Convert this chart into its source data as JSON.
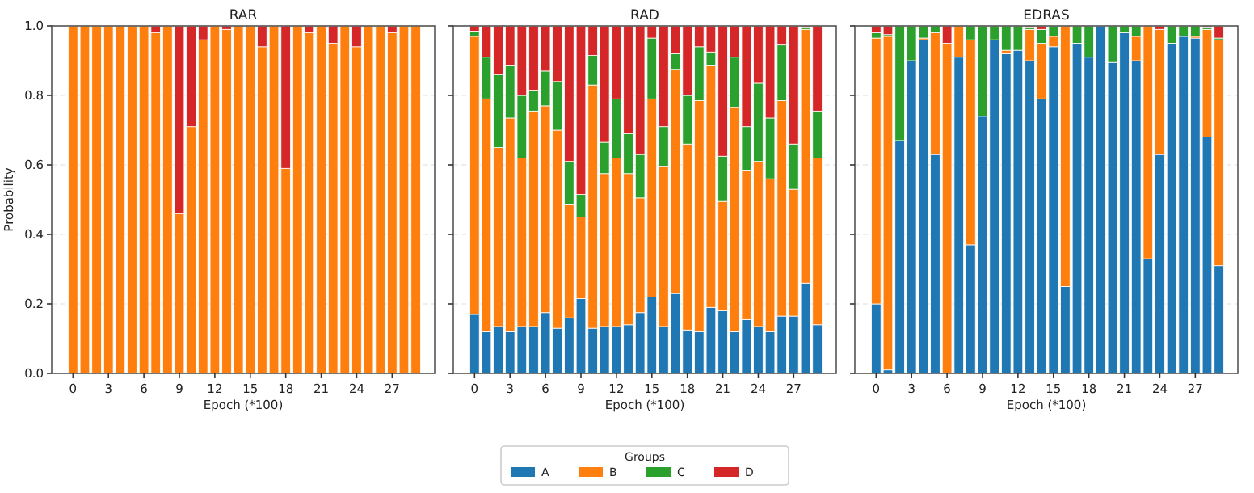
{
  "chart_data": [
    {
      "type": "bar",
      "stacked": true,
      "title": "RAR",
      "xlabel": "Epoch (*100)",
      "ylabel": "Probability",
      "x": [
        0,
        1,
        2,
        3,
        4,
        5,
        6,
        7,
        8,
        9,
        10,
        11,
        12,
        13,
        14,
        15,
        16,
        17,
        18,
        19,
        20,
        21,
        22,
        23,
        24,
        25,
        26,
        27,
        28,
        29
      ],
      "xlim": [
        -1.8,
        30.6
      ],
      "xticks": [
        0,
        3,
        6,
        9,
        12,
        15,
        18,
        21,
        24,
        27
      ],
      "ylim": [
        0,
        1
      ],
      "yticks": [
        {
          "value": 0,
          "label": "0.0"
        },
        0.2,
        0.4,
        0.6,
        0.8,
        {
          "value": 1,
          "label": "1.0"
        }
      ],
      "grid": "y",
      "series": [
        {
          "color": "#1f77b4",
          "values": [
            0,
            0,
            0,
            0,
            0,
            0,
            0,
            0,
            0,
            0,
            0,
            0,
            0,
            0,
            0,
            0,
            0,
            0,
            0,
            0,
            0,
            0,
            0,
            0,
            0,
            0,
            0,
            0,
            0,
            0
          ]
        },
        {
          "color": "#ff7f0e",
          "values": [
            1,
            1,
            1,
            1,
            1,
            1,
            1,
            0.98,
            1,
            0.46,
            0.71,
            0.96,
            1,
            0.99,
            1,
            1,
            0.94,
            1,
            0.59,
            1,
            0.98,
            1,
            0.95,
            1,
            0.94,
            1,
            1,
            0.98,
            1,
            1
          ]
        },
        {
          "color": "#2ca02c",
          "values": [
            0,
            0,
            0,
            0,
            0,
            0,
            0,
            0,
            0,
            0,
            0,
            0,
            0,
            0,
            0,
            0,
            0,
            0,
            0,
            0,
            0,
            0,
            0,
            0,
            0,
            0,
            0,
            0,
            0,
            0
          ]
        },
        {
          "color": "#d62728",
          "values": [
            0,
            0,
            0,
            0,
            0,
            0,
            0,
            0.02,
            0,
            0.54,
            0.29,
            0.04,
            0,
            0.01,
            0,
            0,
            0.06,
            0,
            0.41,
            0,
            0.02,
            0,
            0.05,
            0,
            0.06,
            0,
            0,
            0.02,
            0,
            0
          ]
        }
      ]
    },
    {
      "type": "bar",
      "stacked": true,
      "title": "RAD",
      "xlabel": "Epoch (*100)",
      "x": [
        0,
        1,
        2,
        3,
        4,
        5,
        6,
        7,
        8,
        9,
        10,
        11,
        12,
        13,
        14,
        15,
        16,
        17,
        18,
        19,
        20,
        21,
        22,
        23,
        24,
        25,
        26,
        27,
        28,
        29
      ],
      "xlim": [
        -1.8,
        30.6
      ],
      "xticks": [
        0,
        3,
        6,
        9,
        12,
        15,
        18,
        21,
        24,
        27
      ],
      "ylim": [
        0,
        1
      ],
      "yticks": [
        0,
        0.2,
        0.4,
        0.6,
        0.8,
        1
      ],
      "tick_labels": "x",
      "grid": "y",
      "legend": "bottom",
      "legend_title": "Groups",
      "series": [
        {
          "name": "A",
          "color": "#1f77b4",
          "values": [
            0.17,
            0.12,
            0.135,
            0.12,
            0.135,
            0.135,
            0.175,
            0.13,
            0.16,
            0.215,
            0.13,
            0.135,
            0.135,
            0.14,
            0.175,
            0.22,
            0.135,
            0.23,
            0.125,
            0.12,
            0.19,
            0.18,
            0.12,
            0.155,
            0.135,
            0.12,
            0.165,
            0.165,
            0.26,
            0.14
          ]
        },
        {
          "name": "B",
          "color": "#ff7f0e",
          "values": [
            0.8,
            0.67,
            0.515,
            0.615,
            0.485,
            0.62,
            0.595,
            0.57,
            0.325,
            0.235,
            0.7,
            0.44,
            0.485,
            0.435,
            0.33,
            0.57,
            0.46,
            0.645,
            0.535,
            0.665,
            0.695,
            0.315,
            0.645,
            0.43,
            0.475,
            0.44,
            0.62,
            0.365,
            0.73,
            0.48
          ]
        },
        {
          "name": "C",
          "color": "#2ca02c",
          "values": [
            0.015,
            0.12,
            0.21,
            0.15,
            0.18,
            0.06,
            0.1,
            0.14,
            0.125,
            0.065,
            0.085,
            0.09,
            0.17,
            0.115,
            0.125,
            0.175,
            0.115,
            0.045,
            0.14,
            0.155,
            0.04,
            0.13,
            0.145,
            0.125,
            0.225,
            0.175,
            0.16,
            0.13,
            0.005,
            0.135
          ]
        },
        {
          "name": "D",
          "color": "#d62728",
          "values": [
            0.015,
            0.09,
            0.14,
            0.115,
            0.2,
            0.185,
            0.13,
            0.16,
            0.39,
            0.485,
            0.085,
            0.335,
            0.21,
            0.31,
            0.37,
            0.035,
            0.29,
            0.08,
            0.2,
            0.06,
            0.075,
            0.375,
            0.09,
            0.29,
            0.165,
            0.265,
            0.055,
            0.34,
            0.005,
            0.245
          ]
        }
      ]
    },
    {
      "type": "bar",
      "stacked": true,
      "title": "EDRAS",
      "xlabel": "Epoch (*100)",
      "x": [
        0,
        1,
        2,
        3,
        4,
        5,
        6,
        7,
        8,
        9,
        10,
        11,
        12,
        13,
        14,
        15,
        16,
        17,
        18,
        19,
        20,
        21,
        22,
        23,
        24,
        25,
        26,
        27,
        28,
        29
      ],
      "xlim": [
        -1.8,
        30.6
      ],
      "xticks": [
        0,
        3,
        6,
        9,
        12,
        15,
        18,
        21,
        24,
        27
      ],
      "ylim": [
        0,
        1
      ],
      "yticks": [
        0,
        0.2,
        0.4,
        0.6,
        0.8,
        1
      ],
      "tick_labels": "x",
      "grid": "y",
      "series": [
        {
          "color": "#1f77b4",
          "values": [
            0.2,
            0.01,
            0.67,
            0.9,
            0.96,
            0.63,
            0,
            0.91,
            0.37,
            0.74,
            0.96,
            0.92,
            0.93,
            0.9,
            0.79,
            0.94,
            0.25,
            0.95,
            0.91,
            1,
            0.895,
            0.98,
            0.9,
            0.33,
            0.63,
            0.95,
            0.97,
            0.965,
            0.68,
            0.31
          ]
        },
        {
          "color": "#ff7f0e",
          "values": [
            0.765,
            0.96,
            0,
            0,
            0.005,
            0.35,
            0.95,
            0.09,
            0.59,
            0,
            0,
            0.01,
            0,
            0.09,
            0.16,
            0.03,
            0.75,
            0,
            0,
            0,
            0,
            0,
            0.07,
            0.67,
            0.36,
            0,
            0,
            0.005,
            0.31,
            0.65
          ]
        },
        {
          "color": "#2ca02c",
          "values": [
            0.015,
            0.005,
            0.33,
            0.1,
            0.035,
            0.02,
            0,
            0,
            0.04,
            0.26,
            0.04,
            0.07,
            0.07,
            0.005,
            0.04,
            0.03,
            0,
            0.05,
            0.09,
            0,
            0.105,
            0.02,
            0.03,
            0,
            0,
            0.05,
            0.03,
            0.03,
            0.005,
            0.005
          ]
        },
        {
          "color": "#d62728",
          "values": [
            0.02,
            0.025,
            0,
            0,
            0,
            0,
            0.05,
            0,
            0,
            0,
            0,
            0,
            0,
            0.005,
            0.01,
            0,
            0,
            0,
            0,
            0,
            0,
            0,
            0,
            0,
            0.01,
            0,
            0,
            0,
            0.005,
            0.035
          ]
        }
      ]
    }
  ]
}
